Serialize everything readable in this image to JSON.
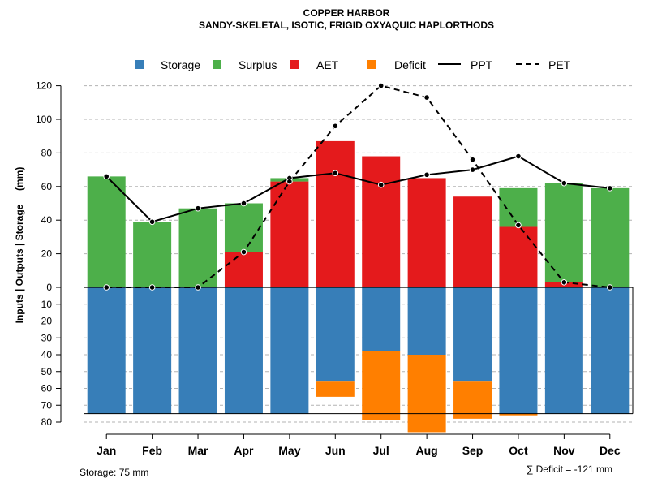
{
  "chart_data": {
    "type": "bar",
    "title": "COPPER HARBOR",
    "subtitle": "SANDY-SKELETAL, ISOTIC, FRIGID OXYAQUIC HAPLORTHODS",
    "ylabel": "Inputs | Outputs | Storage     (mm)",
    "categories": [
      "Jan",
      "Feb",
      "Mar",
      "Apr",
      "May",
      "Jun",
      "Jul",
      "Aug",
      "Sep",
      "Oct",
      "Nov",
      "Dec"
    ],
    "upper_ylim": [
      0,
      120
    ],
    "lower_ylim": [
      0,
      80
    ],
    "upper_ticks": [
      0,
      20,
      40,
      60,
      80,
      100,
      120
    ],
    "lower_ticks": [
      10,
      20,
      30,
      40,
      50,
      60,
      70,
      80
    ],
    "grid": true,
    "legend_position": "top",
    "storage_capacity": 75,
    "series": [
      {
        "name": "Storage",
        "kind": "bar-below",
        "color": "#377EB8",
        "values": [
          75,
          75,
          75,
          75,
          75,
          56,
          38,
          40,
          56,
          75,
          75,
          75
        ]
      },
      {
        "name": "Surplus",
        "kind": "bar-above",
        "color": "#4DAF4A",
        "values": [
          66,
          39,
          47,
          29,
          2,
          0,
          0,
          0,
          0,
          23,
          59,
          59
        ]
      },
      {
        "name": "AET",
        "kind": "bar-above",
        "color": "#E41A1C",
        "values": [
          0,
          0,
          0,
          21,
          63,
          87,
          78,
          65,
          54,
          36,
          3,
          0
        ]
      },
      {
        "name": "Deficit",
        "kind": "bar-below",
        "color": "#FF7F00",
        "values": [
          0,
          0,
          0,
          0,
          0,
          9,
          41,
          46,
          22,
          1,
          0,
          0
        ]
      },
      {
        "name": "PPT",
        "kind": "line",
        "dash": false,
        "color": "#000000",
        "values": [
          66,
          39,
          47,
          50,
          65,
          68,
          61,
          67,
          70,
          78,
          62,
          59
        ]
      },
      {
        "name": "PET",
        "kind": "line",
        "dash": true,
        "color": "#000000",
        "values": [
          0,
          0,
          0,
          21,
          63,
          96,
          120,
          113,
          76,
          37,
          3,
          0
        ]
      }
    ],
    "storage_note": "Storage: 75 mm",
    "deficit_note": "∑ Deficit = -121 mm"
  }
}
